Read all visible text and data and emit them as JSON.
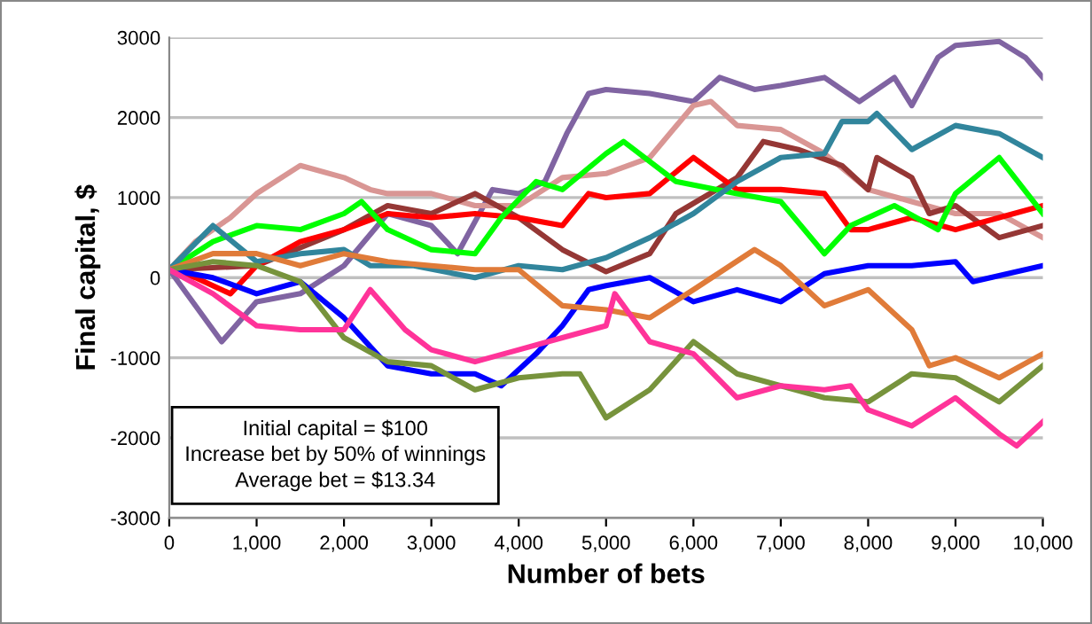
{
  "chart_data": {
    "type": "line",
    "xlabel": "Number of bets",
    "ylabel": "Final capital, $",
    "xlim": [
      0,
      10000
    ],
    "ylim": [
      -3000,
      3000
    ],
    "xticks": [
      0,
      {
        "value": 1000,
        "label": "1,000"
      },
      {
        "value": 2000,
        "label": "2,000"
      },
      {
        "value": 3000,
        "label": "3,000"
      },
      {
        "value": 4000,
        "label": "4,000"
      },
      {
        "value": 5000,
        "label": "5,000"
      },
      {
        "value": 6000,
        "label": "6,000"
      },
      {
        "value": 7000,
        "label": "7,000"
      },
      {
        "value": 8000,
        "label": "8,000"
      },
      {
        "value": 9000,
        "label": "9,000"
      },
      {
        "value": 10000,
        "label": "10,000"
      }
    ],
    "yticks": [
      -3000,
      -2000,
      -1000,
      0,
      1000,
      2000,
      3000
    ],
    "grid": "y",
    "legend": false,
    "marker": "none",
    "line_style": "solid",
    "annotations": [
      "Initial capital = $100\nIncrease bet by 50% of winnings\nAverage bet = $13.34"
    ],
    "series": [
      {
        "color": "#8064a2",
        "x": [
          0,
          600,
          1000,
          1500,
          2000,
          2500,
          3000,
          3300,
          3700,
          4000,
          4300,
          4550,
          4800,
          5000,
          5500,
          6000,
          6300,
          6700,
          7000,
          7500,
          7900,
          8300,
          8500,
          8800,
          9000,
          9500,
          9800,
          10000
        ],
        "values": [
          100,
          -800,
          -300,
          -200,
          150,
          800,
          650,
          300,
          1100,
          1050,
          1200,
          1800,
          2300,
          2350,
          2300,
          2200,
          2500,
          2350,
          2400,
          2500,
          2200,
          2500,
          2150,
          2750,
          2900,
          2950,
          2750,
          2500
        ]
      },
      {
        "color": "#d99694",
        "x": [
          0,
          300,
          700,
          1000,
          1500,
          2000,
          2300,
          2500,
          3000,
          3500,
          4000,
          4500,
          5000,
          5500,
          6000,
          6200,
          6500,
          7000,
          7500,
          8000,
          8500,
          9000,
          9500,
          10000
        ],
        "values": [
          100,
          450,
          750,
          1050,
          1400,
          1250,
          1100,
          1050,
          1050,
          900,
          900,
          1250,
          1300,
          1500,
          2150,
          2200,
          1900,
          1850,
          1550,
          1100,
          950,
          800,
          800,
          500
        ]
      },
      {
        "color": "#953735",
        "x": [
          0,
          1000,
          2000,
          2500,
          3000,
          3500,
          4000,
          4500,
          5000,
          5500,
          5800,
          6500,
          6800,
          7200,
          7700,
          8000,
          8100,
          8500,
          8700,
          9000,
          9500,
          10000
        ],
        "values": [
          100,
          150,
          600,
          900,
          800,
          1050,
          750,
          350,
          75,
          300,
          800,
          1250,
          1700,
          1600,
          1400,
          1100,
          1500,
          1250,
          800,
          900,
          500,
          650
        ]
      },
      {
        "color": "#ff0000",
        "x": [
          0,
          300,
          700,
          1000,
          1500,
          2000,
          2500,
          3000,
          3500,
          4000,
          4500,
          4800,
          5000,
          5500,
          6000,
          6500,
          7000,
          7500,
          7800,
          8000,
          8500,
          9000,
          9500,
          10000
        ],
        "values": [
          100,
          0,
          -200,
          150,
          450,
          600,
          800,
          750,
          800,
          750,
          650,
          1050,
          1000,
          1050,
          1500,
          1100,
          1100,
          1050,
          600,
          600,
          750,
          600,
          750,
          900
        ]
      },
      {
        "color": "#00ff00",
        "x": [
          0,
          500,
          1000,
          1500,
          2000,
          2200,
          2500,
          3000,
          3500,
          3800,
          4200,
          4500,
          5000,
          5200,
          5800,
          6500,
          7000,
          7500,
          7800,
          8300,
          8800,
          9000,
          9500,
          10000
        ],
        "values": [
          100,
          450,
          650,
          600,
          800,
          950,
          600,
          350,
          300,
          750,
          1200,
          1100,
          1550,
          1700,
          1200,
          1050,
          950,
          300,
          650,
          900,
          600,
          1050,
          1500,
          800
        ]
      },
      {
        "color": "#31859c",
        "x": [
          0,
          500,
          1000,
          1500,
          2000,
          2300,
          2800,
          3500,
          4000,
          4500,
          5000,
          5500,
          6000,
          6500,
          7000,
          7500,
          7700,
          8000,
          8100,
          8500,
          9000,
          9500,
          10000
        ],
        "values": [
          100,
          650,
          200,
          300,
          350,
          150,
          150,
          0,
          150,
          100,
          250,
          500,
          800,
          1200,
          1500,
          1550,
          1950,
          1950,
          2050,
          1600,
          1900,
          1800,
          1500
        ]
      },
      {
        "color": "#0000ff",
        "x": [
          0,
          500,
          1000,
          1500,
          2000,
          2500,
          3000,
          3500,
          3800,
          4200,
          4500,
          4800,
          5000,
          5500,
          6000,
          6500,
          7000,
          7500,
          8000,
          8500,
          9000,
          9200,
          10000
        ],
        "values": [
          100,
          0,
          -200,
          -50,
          -500,
          -1100,
          -1200,
          -1200,
          -1350,
          -950,
          -600,
          -150,
          -100,
          0,
          -300,
          -150,
          -300,
          50,
          150,
          150,
          200,
          -50,
          150
        ]
      },
      {
        "color": "#e07b39",
        "x": [
          0,
          500,
          1000,
          1500,
          2000,
          2500,
          3000,
          3500,
          4000,
          4500,
          5000,
          5500,
          6000,
          6700,
          7000,
          7500,
          8000,
          8500,
          8700,
          9000,
          9500,
          10000
        ],
        "values": [
          100,
          300,
          300,
          150,
          300,
          200,
          150,
          100,
          100,
          -350,
          -400,
          -500,
          -150,
          350,
          150,
          -350,
          -150,
          -650,
          -1100,
          -1000,
          -1250,
          -950
        ]
      },
      {
        "color": "#77933c",
        "x": [
          0,
          500,
          1000,
          1500,
          2000,
          2500,
          3000,
          3500,
          4000,
          4500,
          4700,
          5000,
          5500,
          6000,
          6500,
          7000,
          7500,
          8000,
          8500,
          9000,
          9500,
          10000
        ],
        "values": [
          100,
          200,
          150,
          -50,
          -750,
          -1050,
          -1100,
          -1400,
          -1250,
          -1200,
          -1200,
          -1750,
          -1400,
          -800,
          -1200,
          -1350,
          -1500,
          -1550,
          -1200,
          -1250,
          -1550,
          -1100
        ]
      },
      {
        "color": "#ff3399",
        "x": [
          0,
          500,
          1000,
          1500,
          2000,
          2300,
          2700,
          3000,
          3500,
          4000,
          4500,
          5000,
          5100,
          5500,
          6000,
          6500,
          7000,
          7500,
          7800,
          8000,
          8500,
          9000,
          9500,
          9700,
          10000
        ],
        "values": [
          100,
          -200,
          -600,
          -650,
          -650,
          -150,
          -650,
          -900,
          -1050,
          -900,
          -750,
          -600,
          -200,
          -800,
          -950,
          -1500,
          -1350,
          -1400,
          -1350,
          -1650,
          -1850,
          -1500,
          -1950,
          -2100,
          -1800
        ]
      }
    ]
  }
}
